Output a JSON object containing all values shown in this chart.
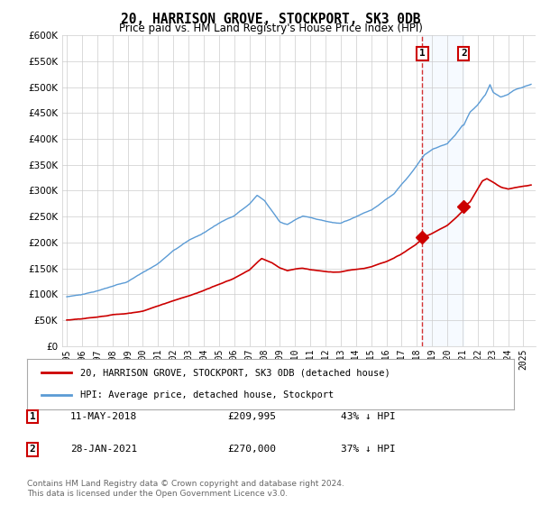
{
  "title": "20, HARRISON GROVE, STOCKPORT, SK3 0DB",
  "subtitle": "Price paid vs. HM Land Registry's House Price Index (HPI)",
  "hpi_color": "#5b9bd5",
  "price_color": "#cc0000",
  "shade_color": "#ddeeff",
  "ylim": [
    0,
    600000
  ],
  "yticks": [
    0,
    50000,
    100000,
    150000,
    200000,
    250000,
    300000,
    350000,
    400000,
    450000,
    500000,
    550000,
    600000
  ],
  "legend_label_red": "20, HARRISON GROVE, STOCKPORT, SK3 0DB (detached house)",
  "legend_label_blue": "HPI: Average price, detached house, Stockport",
  "sale1_label": "1",
  "sale1_date": "11-MAY-2018",
  "sale1_price": "£209,995",
  "sale1_hpi": "43% ↓ HPI",
  "sale2_label": "2",
  "sale2_date": "28-JAN-2021",
  "sale2_price": "£270,000",
  "sale2_hpi": "37% ↓ HPI",
  "footnote": "Contains HM Land Registry data © Crown copyright and database right 2024.\nThis data is licensed under the Open Government Licence v3.0.",
  "sale1_year": 2018.36,
  "sale1_value": 209995,
  "sale2_year": 2021.08,
  "sale2_value": 270000,
  "xlim_left": 1994.7,
  "xlim_right": 2025.8
}
